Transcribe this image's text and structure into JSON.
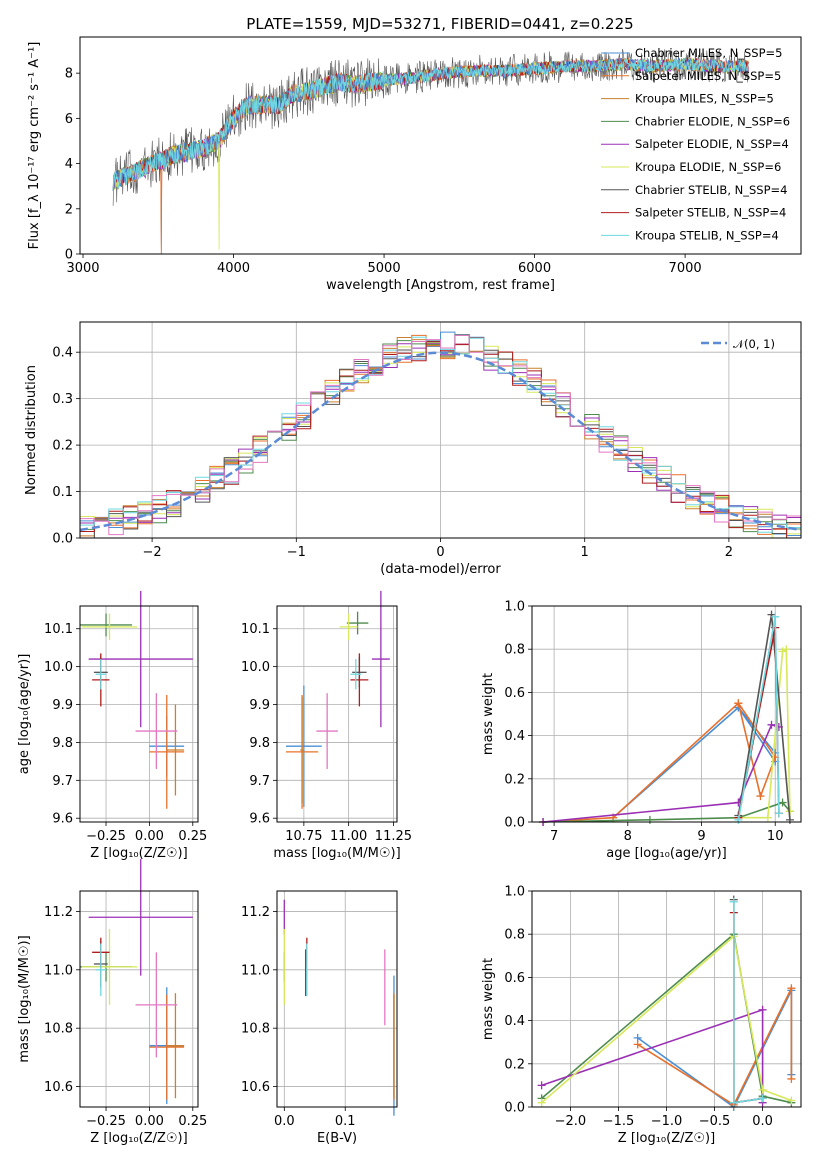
{
  "figure_title": "PLATE=1559, MJD=53271, FIBERID=0441, z=0.225",
  "colors": {
    "Chabrier MILES": "#4a8fd6",
    "Salpeter MILES": "#e8702a",
    "Kroupa MILES": "#c9812f",
    "Chabrier ELODIE": "#4e8c4e",
    "Salpeter ELODIE": "#9b30b5",
    "Kroupa ELODIE": "#d7e85a",
    "Chabrier STELIB": "#555555",
    "Salpeter STELIB": "#b01c1c",
    "Kroupa STELIB": "#6fd8e0",
    "pink": "#e377c2",
    "gaussian": "#5b8ad6"
  },
  "legend_spectrum": [
    "Chabrier MILES, N_SSP=5",
    "Salpeter MILES, N_SSP=5",
    "Kroupa MILES, N_SSP=5",
    "Chabrier ELODIE, N_SSP=6",
    "Salpeter ELODIE, N_SSP=4",
    "Kroupa ELODIE, N_SSP=6",
    "Chabrier STELIB, N_SSP=4",
    "Salpeter STELIB, N_SSP=4",
    "Kroupa STELIB, N_SSP=4"
  ],
  "legend_hist": "𝒩(0, 1)",
  "axes": {
    "spectrum": {
      "xlabel": "wavelength [Angstrom, rest frame]",
      "ylabel": "Flux [f_λ 10⁻¹⁷ erg cm⁻² s⁻¹ A⁻¹]",
      "xticks": [
        "3000",
        "4000",
        "5000",
        "6000",
        "7000"
      ],
      "yticks": [
        "0",
        "2",
        "4",
        "6",
        "8"
      ]
    },
    "hist": {
      "xlabel": "(data-model)/error",
      "ylabel": "Normed distribution",
      "xticks": [
        "−2",
        "−1",
        "0",
        "1",
        "2"
      ],
      "yticks": [
        "0.0",
        "0.1",
        "0.2",
        "0.3",
        "0.4"
      ]
    },
    "age_z": {
      "xlabel": "Z [log₁₀(Z/Z☉)]",
      "ylabel": "age  [log₁₀(age/yr)]",
      "xticks": [
        "−0.25",
        "0.00",
        "0.25"
      ],
      "yticks": [
        "9.6",
        "9.7",
        "9.8",
        "9.9",
        "10.0",
        "10.1"
      ]
    },
    "age_mass": {
      "xlabel": "mass [log₁₀(M/M☉)]",
      "xticks": [
        "10.75",
        "11.00",
        "11.25"
      ],
      "yticks": [
        "9.6",
        "9.7",
        "9.8",
        "9.9",
        "10.0",
        "10.1"
      ]
    },
    "mw_age": {
      "xlabel": "age  [log₁₀(age/yr)]",
      "ylabel": "mass weight",
      "xticks": [
        "7",
        "8",
        "9",
        "10"
      ],
      "yticks": [
        "0.0",
        "0.2",
        "0.4",
        "0.6",
        "0.8",
        "1.0"
      ]
    },
    "mass_z": {
      "xlabel": "Z [log₁₀(Z/Z☉)]",
      "ylabel": "mass [log₁₀(M/M☉)]",
      "xticks": [
        "−0.25",
        "0.00",
        "0.25"
      ],
      "yticks": [
        "10.6",
        "10.8",
        "11.0",
        "11.2"
      ]
    },
    "mass_ebv": {
      "xlabel": "E(B-V)",
      "xticks": [
        "0.0",
        "0.1"
      ],
      "yticks": [
        "10.6",
        "10.8",
        "11.0",
        "11.2"
      ]
    },
    "mw_z": {
      "xlabel": "Z [log₁₀(Z/Z☉)]",
      "ylabel": "mass weight",
      "xticks": [
        "−2.0",
        "−1.5",
        "−1.0",
        "−0.5",
        "0.0"
      ],
      "yticks": [
        "0.0",
        "0.2",
        "0.4",
        "0.6",
        "0.8",
        "1.0"
      ]
    }
  },
  "chart_data": [
    {
      "type": "line",
      "panel": "spectrum",
      "title": "PLATE=1559, MJD=53271, FIBERID=0441, z=0.225",
      "xlim": [
        2980,
        7770
      ],
      "ylim": [
        0,
        9.6
      ],
      "series_shape": [
        [
          3200,
          3.2
        ],
        [
          3300,
          3.5
        ],
        [
          3400,
          3.8
        ],
        [
          3500,
          4.1
        ],
        [
          3600,
          4.4
        ],
        [
          3700,
          4.5
        ],
        [
          3800,
          4.7
        ],
        [
          3900,
          5.0
        ],
        [
          4000,
          6.0
        ],
        [
          4100,
          6.6
        ],
        [
          4200,
          6.6
        ],
        [
          4300,
          6.6
        ],
        [
          4400,
          7.1
        ],
        [
          4500,
          7.2
        ],
        [
          4600,
          7.4
        ],
        [
          4700,
          7.6
        ],
        [
          4800,
          7.5
        ],
        [
          4900,
          7.6
        ],
        [
          5000,
          7.7
        ],
        [
          5200,
          7.8
        ],
        [
          5400,
          8.0
        ],
        [
          5600,
          8.1
        ],
        [
          5800,
          8.1
        ],
        [
          6000,
          8.2
        ],
        [
          6200,
          8.3
        ],
        [
          6400,
          8.3
        ],
        [
          6600,
          8.4
        ],
        [
          6800,
          8.3
        ],
        [
          7000,
          8.4
        ],
        [
          7200,
          8.3
        ],
        [
          7400,
          8.3
        ]
      ],
      "grid": false,
      "legend": "upper-right"
    },
    {
      "type": "line",
      "panel": "hist",
      "xlim": [
        -2.5,
        2.5
      ],
      "ylim": [
        0,
        0.465
      ],
      "gaussian_label": "𝒩(0, 1)",
      "bin_width": 0.1,
      "grid": true,
      "legend": "upper-right"
    },
    {
      "type": "scatter",
      "panel": "age_z",
      "xlim": [
        -0.4,
        0.28
      ],
      "ylim": [
        9.59,
        10.16
      ],
      "points": [
        {
          "series": "Chabrier MILES",
          "x": 0.1,
          "y": 9.79,
          "xerr": 0.1,
          "yerr": 0.08
        },
        {
          "series": "Salpeter MILES",
          "x": 0.1,
          "y": 9.775,
          "xerr": 0.1,
          "yerr": 0.15
        },
        {
          "series": "Kroupa MILES",
          "x": 0.15,
          "y": 9.78,
          "xerr": 0.05,
          "yerr": 0.12
        },
        {
          "series": "Chabrier ELODIE",
          "x": -0.25,
          "y": 10.11,
          "xerr": 0.15,
          "yerr": 0.03
        },
        {
          "series": "Salpeter ELODIE",
          "x": -0.05,
          "y": 10.02,
          "xerr": 0.3,
          "yerr": 0.18
        },
        {
          "series": "Kroupa ELODIE",
          "x": -0.23,
          "y": 10.105,
          "xerr": 0.16,
          "yerr": 0.035
        },
        {
          "series": "Chabrier STELIB",
          "x": -0.28,
          "y": 9.985,
          "xerr": 0.04,
          "yerr": 0.045
        },
        {
          "series": "Salpeter STELIB",
          "x": -0.28,
          "y": 9.965,
          "xerr": 0.05,
          "yerr": 0.07
        },
        {
          "series": "Kroupa STELIB",
          "x": -0.28,
          "y": 9.98,
          "xerr": 0.03,
          "yerr": 0.04
        },
        {
          "series": "pink",
          "x": 0.04,
          "y": 9.83,
          "xerr": 0.12,
          "yerr": 0.1
        }
      ]
    },
    {
      "type": "scatter",
      "panel": "age_mass",
      "xlim": [
        10.6,
        11.27
      ],
      "ylim": [
        9.59,
        10.16
      ],
      "points": [
        {
          "series": "Chabrier MILES",
          "x": 10.75,
          "y": 9.79,
          "xerr": 0.1,
          "yerr": 0.16
        },
        {
          "series": "Salpeter MILES",
          "x": 10.74,
          "y": 9.775,
          "xerr": 0.09,
          "yerr": 0.15
        },
        {
          "series": "Kroupa MILES",
          "x": 10.74,
          "y": 9.78,
          "xerr": 0.01,
          "yerr": 0.14
        },
        {
          "series": "Chabrier ELODIE",
          "x": 11.05,
          "y": 10.115,
          "xerr": 0.06,
          "yerr": 0.03
        },
        {
          "series": "Salpeter ELODIE",
          "x": 11.18,
          "y": 10.02,
          "xerr": 0.05,
          "yerr": 0.18
        },
        {
          "series": "Kroupa ELODIE",
          "x": 11.0,
          "y": 10.105,
          "xerr": 0.05,
          "yerr": 0.035
        },
        {
          "series": "Chabrier STELIB",
          "x": 11.06,
          "y": 9.985,
          "xerr": 0.04,
          "yerr": 0.04
        },
        {
          "series": "Salpeter STELIB",
          "x": 11.06,
          "y": 9.965,
          "xerr": 0.05,
          "yerr": 0.07
        },
        {
          "series": "Kroupa STELIB",
          "x": 11.04,
          "y": 9.98,
          "xerr": 0.03,
          "yerr": 0.04
        },
        {
          "series": "pink",
          "x": 10.88,
          "y": 9.83,
          "xerr": 0.06,
          "yerr": 0.1
        }
      ]
    },
    {
      "type": "line",
      "panel": "mw_age",
      "xlim": [
        6.7,
        10.35
      ],
      "ylim": [
        0,
        1.0
      ],
      "series": [
        {
          "name": "Chabrier MILES",
          "x": [
            9.5,
            10.0,
            10.0,
            9.5,
            7.8
          ],
          "y": [
            0.53,
            0.32,
            0.28,
            0.53,
            0.02
          ]
        },
        {
          "name": "Salpeter MILES",
          "x": [
            9.5,
            9.8,
            10.0,
            9.5,
            7.8,
            6.85
          ],
          "y": [
            0.55,
            0.12,
            0.3,
            0.55,
            0.02,
            0.0
          ]
        },
        {
          "name": "Chabrier ELODIE",
          "x": [
            6.85,
            8.3,
            9.5,
            10.1,
            10.2
          ],
          "y": [
            0.0,
            0.01,
            0.02,
            0.09,
            0.05
          ]
        },
        {
          "name": "Salpeter ELODIE",
          "x": [
            6.85,
            9.5,
            9.95,
            10.05
          ],
          "y": [
            0.0,
            0.09,
            0.45,
            0.44
          ]
        },
        {
          "name": "Kroupa ELODIE",
          "x": [
            9.5,
            9.9,
            10.1,
            10.15,
            10.2
          ],
          "y": [
            0.02,
            0.02,
            0.79,
            0.8,
            0.05
          ]
        },
        {
          "name": "Chabrier STELIB",
          "x": [
            9.5,
            9.95,
            10.2
          ],
          "y": [
            0.03,
            0.96,
            0.01
          ]
        },
        {
          "name": "Salpeter STELIB",
          "x": [
            9.5,
            10.0,
            10.05
          ],
          "y": [
            0.02,
            0.9,
            0.04
          ]
        },
        {
          "name": "Kroupa STELIB",
          "x": [
            9.5,
            10.0,
            10.05
          ],
          "y": [
            0.01,
            0.95,
            0.04
          ]
        }
      ]
    },
    {
      "type": "scatter",
      "panel": "mass_z",
      "xlim": [
        -0.4,
        0.28
      ],
      "ylim": [
        10.53,
        11.27
      ],
      "points": [
        {
          "series": "Chabrier MILES",
          "x": 0.1,
          "y": 10.74,
          "xerr": 0.1,
          "yerr": 0.2
        },
        {
          "series": "Salpeter MILES",
          "x": 0.1,
          "y": 10.735,
          "xerr": 0.1,
          "yerr": 0.18
        },
        {
          "series": "Kroupa MILES",
          "x": 0.15,
          "y": 10.74,
          "xerr": 0.05,
          "yerr": 0.18
        },
        {
          "series": "Chabrier ELODIE",
          "x": -0.25,
          "y": 11.01,
          "xerr": 0.15,
          "yerr": 0.05
        },
        {
          "series": "Salpeter ELODIE",
          "x": -0.05,
          "y": 11.18,
          "xerr": 0.3,
          "yerr": 0.2
        },
        {
          "series": "Kroupa ELODIE",
          "x": -0.23,
          "y": 11.01,
          "xerr": 0.16,
          "yerr": 0.13
        },
        {
          "series": "Chabrier STELIB",
          "x": -0.28,
          "y": 11.02,
          "xerr": 0.04,
          "yerr": 0.08
        },
        {
          "series": "Salpeter STELIB",
          "x": -0.28,
          "y": 11.06,
          "xerr": 0.05,
          "yerr": 0.05
        },
        {
          "series": "Kroupa STELIB",
          "x": -0.28,
          "y": 11.0,
          "xerr": 0.03,
          "yerr": 0.09
        },
        {
          "series": "pink",
          "x": 0.04,
          "y": 10.88,
          "xerr": 0.12,
          "yerr": 0.18
        }
      ]
    },
    {
      "type": "scatter",
      "panel": "mass_ebv",
      "xlim": [
        -0.012,
        0.185
      ],
      "ylim": [
        10.53,
        11.27
      ],
      "points": [
        {
          "series": "Chabrier MILES",
          "x": 0.18,
          "y": 10.74,
          "xerr": 0.0,
          "yerr": 0.24
        },
        {
          "series": "Salpeter MILES",
          "x": 0.18,
          "y": 10.735,
          "xerr": 0.0,
          "yerr": 0.18
        },
        {
          "series": "Kroupa MILES",
          "x": 0.18,
          "y": 10.74,
          "xerr": 0.0,
          "yerr": 0.18
        },
        {
          "series": "Chabrier ELODIE",
          "x": 0.0,
          "y": 11.01,
          "xerr": 0.0,
          "yerr": 0.05
        },
        {
          "series": "Salpeter ELODIE",
          "x": 0.0,
          "y": 11.18,
          "xerr": 0.0,
          "yerr": 0.06
        },
        {
          "series": "Kroupa ELODIE",
          "x": 0.0,
          "y": 11.01,
          "xerr": 0.0,
          "yerr": 0.13
        },
        {
          "series": "Chabrier STELIB",
          "x": 0.035,
          "y": 10.99,
          "xerr": 0.0,
          "yerr": 0.08
        },
        {
          "series": "Salpeter STELIB",
          "x": 0.037,
          "y": 11.06,
          "xerr": 0.0,
          "yerr": 0.05
        },
        {
          "series": "Kroupa STELIB",
          "x": 0.037,
          "y": 11.0,
          "xerr": 0.0,
          "yerr": 0.09
        },
        {
          "series": "pink",
          "x": 0.165,
          "y": 10.94,
          "xerr": 0.0,
          "yerr": 0.13
        }
      ]
    },
    {
      "type": "line",
      "panel": "mw_z",
      "xlim": [
        -2.4,
        0.4
      ],
      "ylim": [
        0,
        1.0
      ],
      "series": [
        {
          "name": "Chabrier MILES",
          "x": [
            -1.3,
            -0.3,
            0.3,
            0.3
          ],
          "y": [
            0.32,
            0.0,
            0.54,
            0.15
          ]
        },
        {
          "name": "Salpeter MILES",
          "x": [
            -1.3,
            -0.3,
            0.3,
            0.3
          ],
          "y": [
            0.29,
            0.01,
            0.55,
            0.13
          ]
        },
        {
          "name": "Chabrier ELODIE",
          "x": [
            -2.3,
            -0.3,
            0.0,
            0.3
          ],
          "y": [
            0.04,
            0.8,
            0.05,
            0.02
          ]
        },
        {
          "name": "Salpeter ELODIE",
          "x": [
            -2.3,
            0.0,
            0.0
          ],
          "y": [
            0.1,
            0.45,
            0.02
          ]
        },
        {
          "name": "Kroupa ELODIE",
          "x": [
            -2.3,
            -0.3,
            0.0,
            0.3
          ],
          "y": [
            0.02,
            0.79,
            0.08,
            0.03
          ]
        },
        {
          "name": "Chabrier STELIB",
          "x": [
            -0.3,
            -0.3,
            0.0
          ],
          "y": [
            0.96,
            0.02,
            0.04
          ]
        },
        {
          "name": "Salpeter STELIB",
          "x": [
            -0.3,
            -0.3,
            0.0
          ],
          "y": [
            0.9,
            0.02,
            0.04
          ]
        },
        {
          "name": "Kroupa STELIB",
          "x": [
            -0.3,
            -0.3,
            0.0
          ],
          "y": [
            0.95,
            0.02,
            0.04
          ]
        }
      ]
    }
  ]
}
